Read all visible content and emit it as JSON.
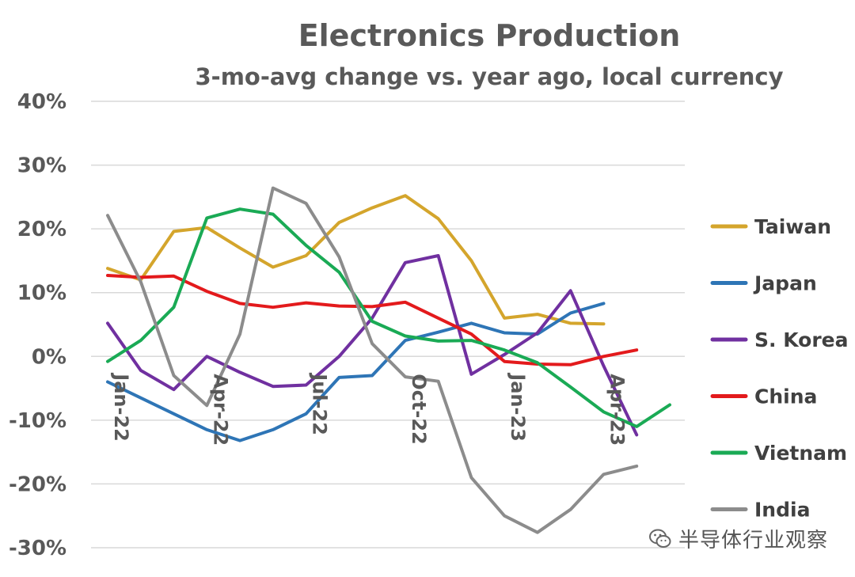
{
  "chart_data": {
    "type": "line",
    "title": "Electronics Production",
    "subtitle": "3-mo-avg change vs. year ago, local currency",
    "xlabel": "",
    "ylabel": "",
    "ylim": [
      -30,
      40
    ],
    "yticks": [
      -30,
      -20,
      -10,
      0,
      10,
      20,
      30,
      40
    ],
    "ytick_labels": [
      "-30%",
      "-20%",
      "-10%",
      "0%",
      "10%",
      "20%",
      "30%",
      "40%"
    ],
    "grid": true,
    "legend_position": "right",
    "categories": [
      "Jan-22",
      "Feb-22",
      "Mar-22",
      "Apr-22",
      "May-22",
      "Jun-22",
      "Jul-22",
      "Aug-22",
      "Sep-22",
      "Oct-22",
      "Nov-22",
      "Dec-22",
      "Jan-23",
      "Feb-23",
      "Mar-23",
      "Apr-23",
      "May-23",
      "Jun-23"
    ],
    "x_tick_labels": [
      {
        "index": 0,
        "label": "Jan-22"
      },
      {
        "index": 3,
        "label": "Apr-22"
      },
      {
        "index": 6,
        "label": "Jul-22"
      },
      {
        "index": 9,
        "label": "Oct-22"
      },
      {
        "index": 12,
        "label": "Jan-23"
      },
      {
        "index": 15,
        "label": "Apr-23"
      }
    ],
    "series": [
      {
        "name": "Taiwan",
        "color": "#D4A52C",
        "values": [
          13.8,
          12.0,
          19.6,
          20.2,
          17.0,
          14.0,
          15.8,
          21.0,
          23.3,
          25.2,
          21.6,
          15.0,
          6.0,
          6.6,
          5.2,
          5.1,
          null,
          null
        ]
      },
      {
        "name": "Japan",
        "color": "#2E75B6",
        "values": [
          -4.0,
          -6.5,
          -9.0,
          -11.5,
          -13.2,
          -11.5,
          -9.0,
          -3.3,
          -3.0,
          2.5,
          3.8,
          5.2,
          3.7,
          3.5,
          6.8,
          8.3,
          null,
          null
        ]
      },
      {
        "name": "S. Korea",
        "color": "#7030A0",
        "values": [
          5.2,
          -2.2,
          -5.2,
          0.0,
          -2.5,
          -4.7,
          -4.5,
          0.0,
          6.0,
          14.7,
          15.8,
          -2.8,
          0.3,
          3.7,
          10.3,
          -1.5,
          -12.3,
          null
        ]
      },
      {
        "name": "China",
        "color": "#E31A1C",
        "values": [
          12.7,
          12.4,
          12.6,
          10.2,
          8.3,
          7.7,
          8.4,
          7.9,
          7.8,
          8.5,
          6.0,
          3.5,
          -0.8,
          -1.2,
          -1.3,
          0.0,
          1.0,
          null
        ]
      },
      {
        "name": "Vietnam",
        "color": "#1AAA55",
        "values": [
          -0.8,
          2.5,
          7.7,
          21.7,
          23.1,
          22.3,
          17.4,
          13.2,
          5.5,
          3.2,
          2.4,
          2.5,
          1.0,
          -1.0,
          -4.8,
          -8.7,
          -11.0,
          -7.6
        ]
      },
      {
        "name": "India",
        "color": "#8C8C8C",
        "values": [
          22.1,
          11.7,
          -3.0,
          -7.7,
          3.5,
          26.4,
          24.0,
          15.6,
          2.0,
          -3.2,
          -3.9,
          -19.0,
          -25.0,
          -27.6,
          -24.0,
          -18.5,
          -17.2,
          null
        ]
      }
    ]
  },
  "watermark": {
    "icon": "wechat-icon",
    "text": "半导体行业观察"
  }
}
